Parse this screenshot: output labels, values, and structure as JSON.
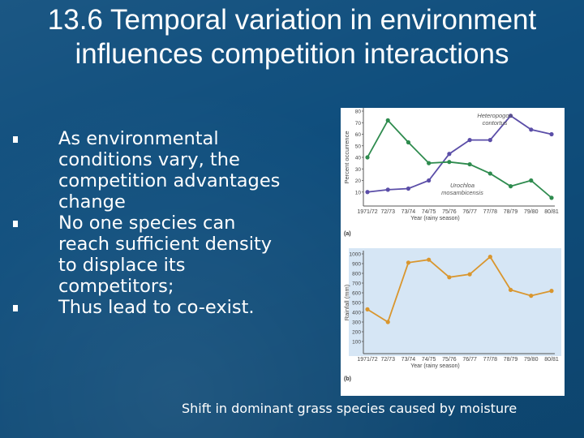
{
  "slide": {
    "title": "13.6 Temporal variation in environment influences competition interactions",
    "bullets": [
      "As environmental conditions vary, the competition advantages change",
      "No one species can reach sufficient density to displace its competitors;",
      "Thus lead to co-exist."
    ],
    "caption": "Shift in dominant grass species caused by moisture"
  },
  "chart_data": [
    {
      "type": "line",
      "panel_label": "(a)",
      "xlabel": "Year (rainy season)",
      "ylabel": "Percent occurrence",
      "categories": [
        "1971/72",
        "72/73",
        "73/74",
        "74/75",
        "75/76",
        "76/77",
        "77/78",
        "78/79",
        "79/80",
        "80/81"
      ],
      "ylim": [
        0,
        80
      ],
      "yticks": [
        10,
        20,
        30,
        40,
        50,
        60,
        70,
        80
      ],
      "series": [
        {
          "name": "Heteropogon contortus",
          "color": "#5b4ea8",
          "values": [
            10,
            12,
            13,
            20,
            43,
            55,
            55,
            76,
            64,
            60
          ]
        },
        {
          "name": "Urochloa mosambicensis",
          "color": "#2e8b4e",
          "values": [
            40,
            72,
            53,
            35,
            36,
            34,
            26,
            15,
            20,
            5
          ]
        }
      ]
    },
    {
      "type": "line",
      "panel_label": "(b)",
      "xlabel": "Year (rainy season)",
      "ylabel": "Rainfall (mm)",
      "categories": [
        "1971/72",
        "72/73",
        "73/74",
        "74/75",
        "75/76",
        "76/77",
        "77/78",
        "78/79",
        "79/80",
        "80/81"
      ],
      "ylim": [
        0,
        1000
      ],
      "yticks": [
        100,
        200,
        300,
        400,
        500,
        600,
        700,
        800,
        900,
        1000
      ],
      "series": [
        {
          "color": "#d9962e",
          "values": [
            430,
            300,
            910,
            940,
            760,
            790,
            970,
            630,
            570,
            620
          ]
        }
      ]
    }
  ],
  "colors": {
    "background": "#0f4e7d",
    "panel_b_background": "#d6e6f5"
  }
}
